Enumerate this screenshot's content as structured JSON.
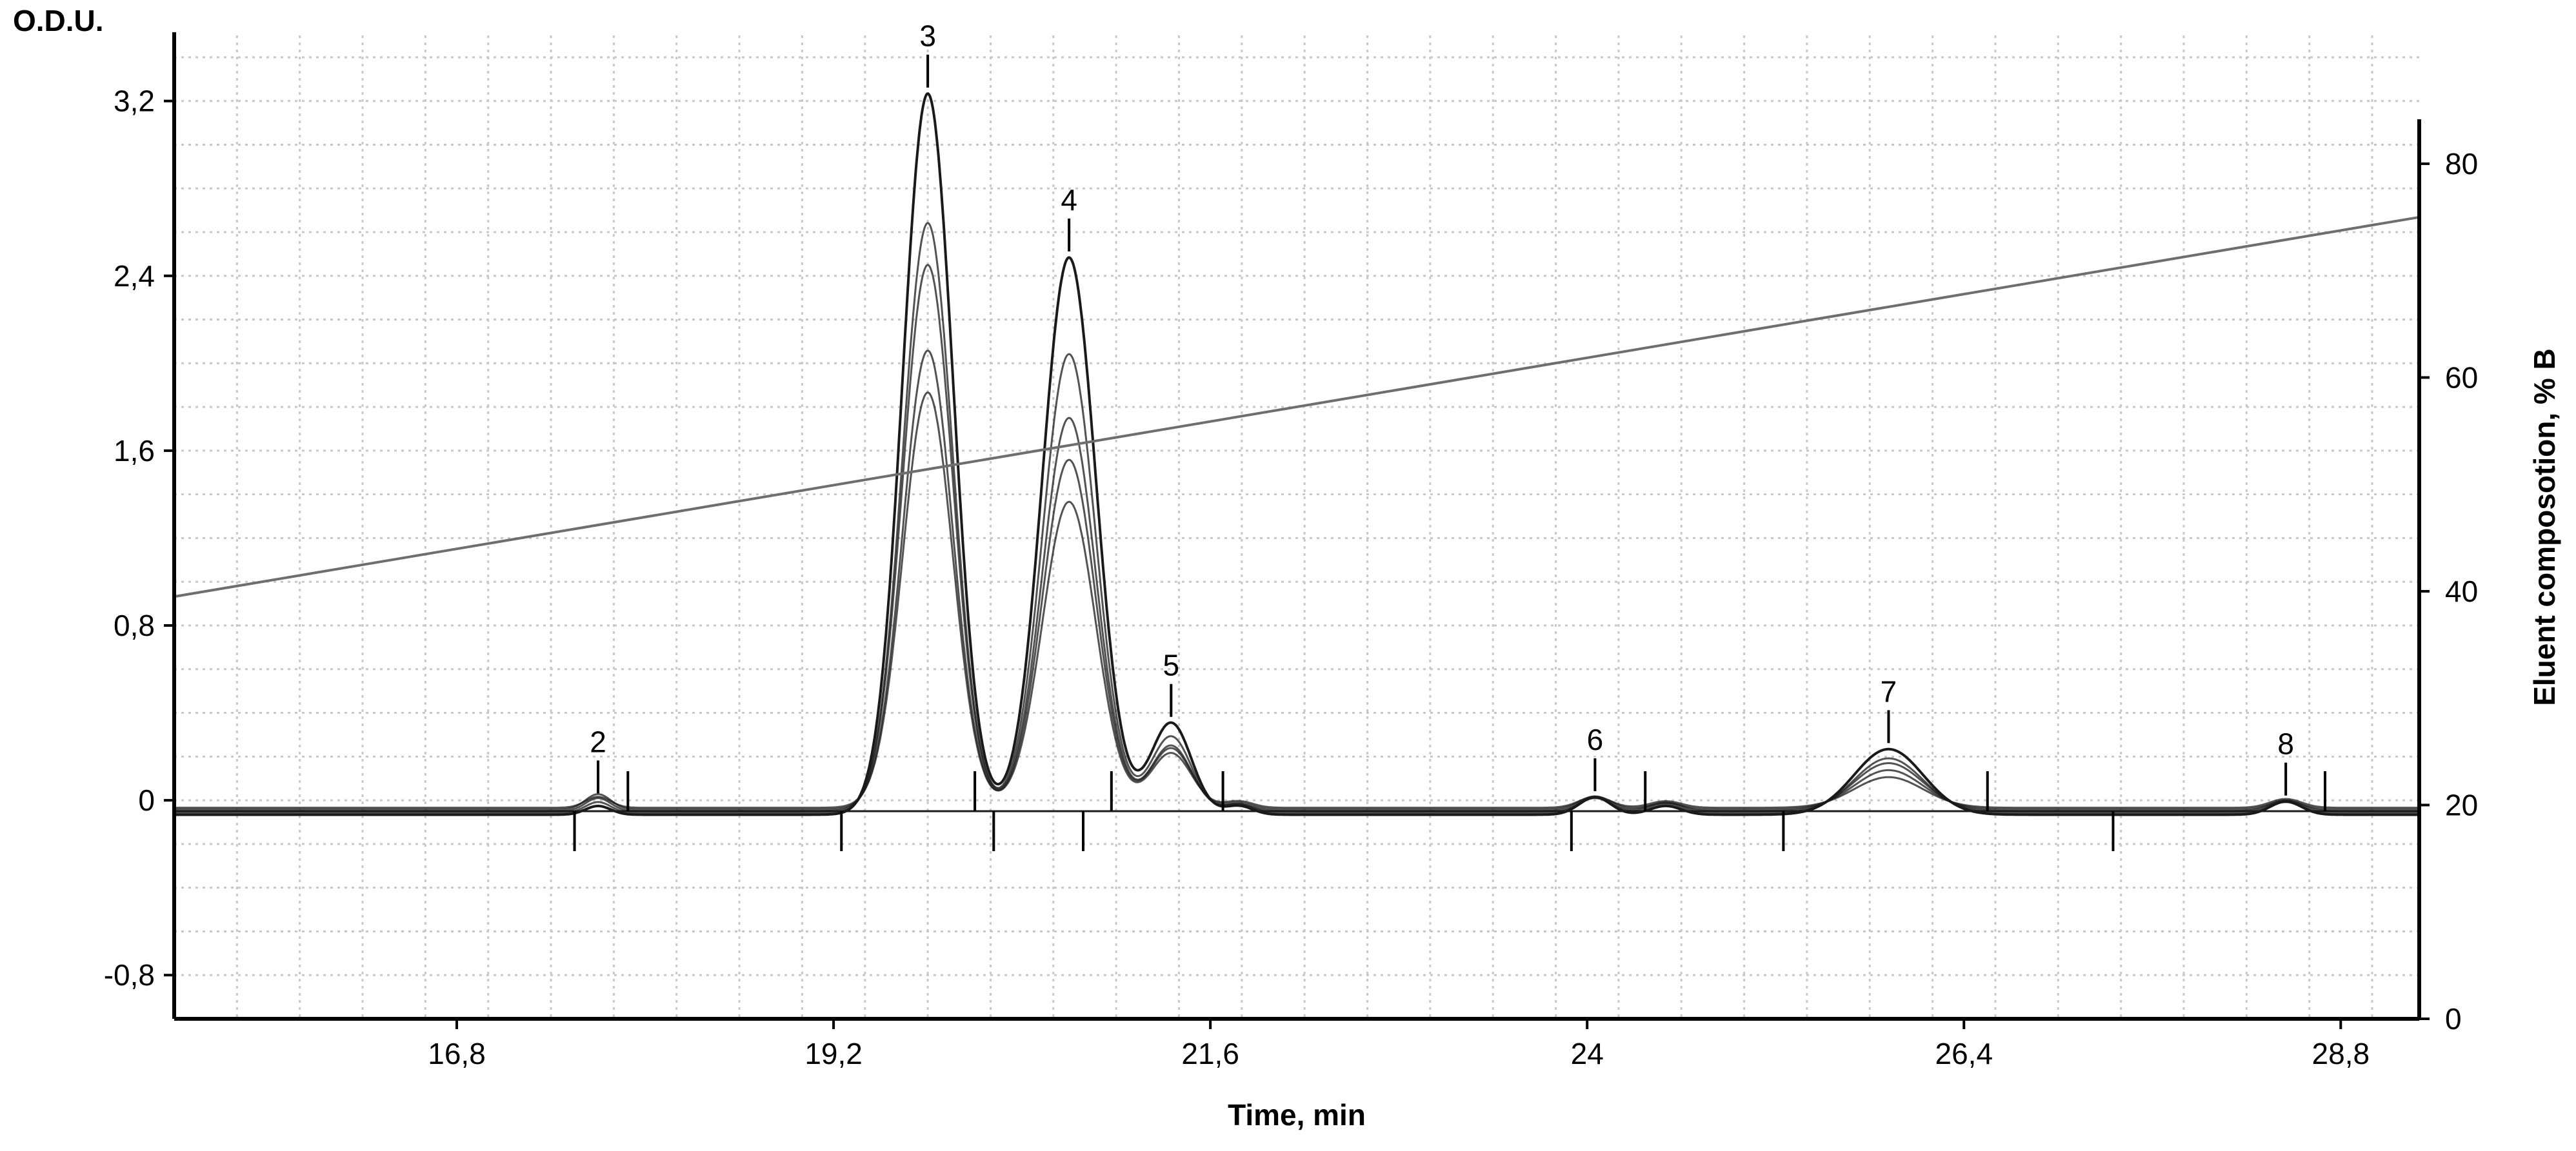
{
  "chart_data": {
    "type": "line",
    "ylabel": "O.D.U.",
    "xlabel": "Time, min",
    "y2label": "Eluent composotion, % B",
    "xlim": [
      15.0,
      29.3
    ],
    "ylim": [
      -1.0,
      3.5
    ],
    "y2lim": [
      0,
      92
    ],
    "x_ticks": [
      16.8,
      19.2,
      21.6,
      24,
      26.4,
      28.8
    ],
    "x_tick_labels": [
      "16,8",
      "19,2",
      "21,6",
      "24",
      "26,4",
      "28,8"
    ],
    "y_ticks": [
      -0.8,
      0,
      0.8,
      1.6,
      2.4,
      3.2
    ],
    "y_tick_labels": [
      "-0,8",
      "0",
      "0,8",
      "1,6",
      "2,4",
      "3,2"
    ],
    "y2_ticks": [
      0,
      20,
      40,
      60,
      80
    ],
    "y2_tick_labels": [
      "0",
      "20",
      "40",
      "60",
      "80"
    ],
    "grid": true,
    "gradient": {
      "x": [
        15.0,
        29.3
      ],
      "y2": [
        39.5,
        75.0
      ]
    },
    "baseline": {
      "x": [
        15.0,
        29.3
      ],
      "y": [
        -0.05,
        -0.05
      ]
    },
    "peaks": [
      {
        "label": "2",
        "x": 17.7,
        "width": 0.08,
        "heights": [
          0.04,
          0.05,
          0.06,
          0.07,
          0.05
        ]
      },
      {
        "label": "3",
        "x": 19.8,
        "width": 0.16,
        "heights": [
          3.3,
          2.7,
          2.5,
          2.1,
          1.9
        ]
      },
      {
        "label": "4",
        "x": 20.7,
        "width": 0.17,
        "heights": [
          2.55,
          2.1,
          1.8,
          1.6,
          1.4
        ]
      },
      {
        "label": "5",
        "x": 21.35,
        "width": 0.13,
        "heights": [
          0.42,
          0.35,
          0.3,
          0.28,
          0.25
        ]
      },
      {
        "label": "",
        "x": 21.78,
        "width": 0.09,
        "heights": [
          0.04,
          0.04,
          0.03,
          0.03,
          0.03
        ]
      },
      {
        "label": "6",
        "x": 24.05,
        "width": 0.1,
        "heights": [
          0.08,
          0.07,
          0.06,
          0.06,
          0.05
        ]
      },
      {
        "label": "",
        "x": 24.5,
        "width": 0.1,
        "heights": [
          0.04,
          0.04,
          0.04,
          0.03,
          0.03
        ]
      },
      {
        "label": "7",
        "x": 25.92,
        "width": 0.22,
        "heights": [
          0.3,
          0.25,
          0.22,
          0.18,
          0.14
        ]
      },
      {
        "label": "8",
        "x": 28.45,
        "width": 0.1,
        "heights": [
          0.06,
          0.05,
          0.05,
          0.04,
          0.04
        ]
      }
    ],
    "integration_marks": {
      "above": [
        17.89,
        20.1,
        20.97,
        21.68,
        24.37,
        26.55,
        28.7
      ],
      "below": [
        17.55,
        19.25,
        20.22,
        20.79,
        23.9,
        25.25,
        27.35
      ]
    },
    "colors": {
      "trace": "#1a1a1a",
      "gradient": "#6e6e6e",
      "grid": "#c8c8c8",
      "axis": "#000000"
    }
  }
}
